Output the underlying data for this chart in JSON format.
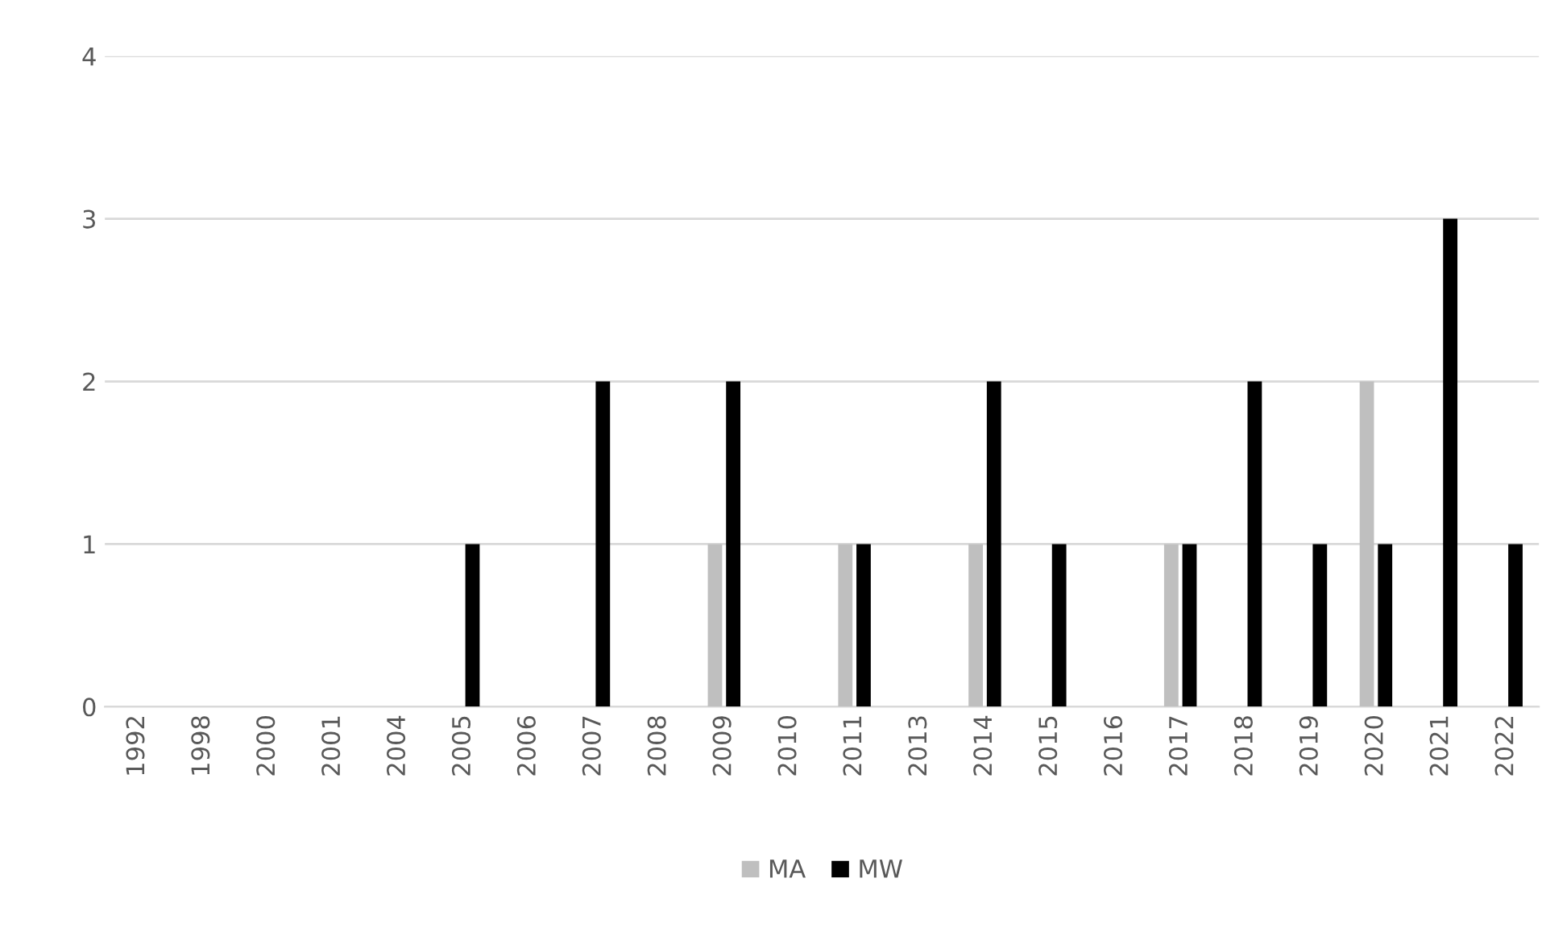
{
  "chart_data": {
    "type": "bar",
    "categories": [
      "1992",
      "1998",
      "2000",
      "2001",
      "2004",
      "2005",
      "2006",
      "2007",
      "2008",
      "2009",
      "2010",
      "2011",
      "2013",
      "2014",
      "2015",
      "2016",
      "2017",
      "2018",
      "2019",
      "2020",
      "2021",
      "2022"
    ],
    "series": [
      {
        "name": "MA",
        "color": "#bfbfbf",
        "values": [
          0,
          0,
          0,
          0,
          0,
          0,
          0,
          0,
          0,
          1,
          0,
          1,
          0,
          1,
          0,
          0,
          1,
          0,
          0,
          2,
          0,
          0
        ]
      },
      {
        "name": "MW",
        "color": "#000000",
        "values": [
          0,
          0,
          0,
          0,
          0,
          1,
          0,
          2,
          0,
          2,
          0,
          1,
          0,
          2,
          1,
          0,
          1,
          2,
          1,
          1,
          3,
          1
        ]
      }
    ],
    "ylim": [
      0,
      4
    ],
    "yticks": [
      0,
      1,
      2,
      3,
      4
    ],
    "grid": "y",
    "legend": "bottom"
  }
}
